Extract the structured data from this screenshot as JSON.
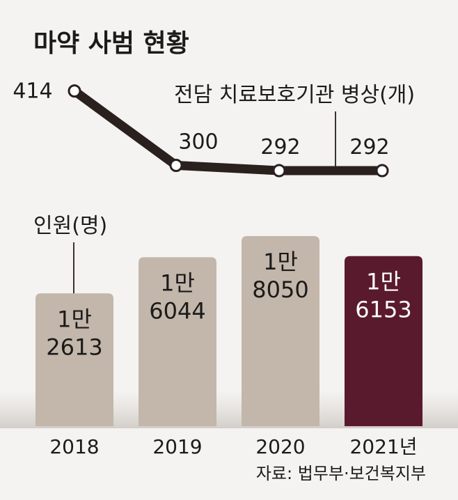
{
  "chart_data": {
    "title": "마약 사범 현황",
    "source": "자료: 법무부·보건복지부",
    "categories": [
      "2018",
      "2019",
      "2020",
      "2021년"
    ],
    "bars": {
      "name": "인원(명)",
      "values": [
        12613,
        16044,
        18050,
        16153
      ],
      "labels_top": [
        "1만",
        "1만",
        "1만",
        "1만"
      ],
      "labels_bottom": [
        "2613",
        "6044",
        "8050",
        "6153"
      ],
      "colors": [
        "#c2b7aa",
        "#c2b7aa",
        "#c2b7aa",
        "#5a1a2d"
      ],
      "label_colors": [
        "#1c1a1a",
        "#1c1a1a",
        "#1c1a1a",
        "#ffffff"
      ]
    },
    "line": {
      "name": "전담 치료보호기관 병상(개)",
      "values": [
        414,
        300,
        292,
        292
      ],
      "labels": [
        "414",
        "300",
        "292",
        "292"
      ],
      "color": "#2a201d"
    },
    "bar_ylim": [
      0,
      20500
    ],
    "line_ylim": [
      260,
      420
    ]
  }
}
